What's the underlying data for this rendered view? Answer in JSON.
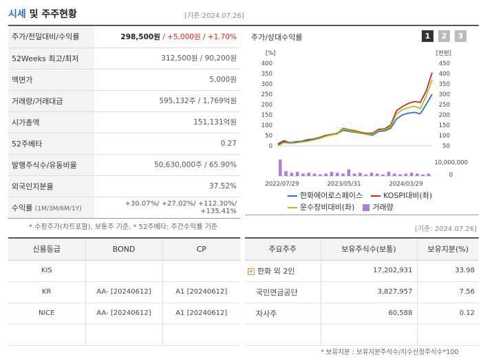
{
  "header": {
    "title_accent": "시세",
    "title_rest": " 및 주주현황",
    "basis": "[기준:2024.07.26]"
  },
  "price_table": {
    "rows": [
      {
        "label": "주가/전일대비/수익률",
        "price": "298,500원",
        "sep1": " / ",
        "change": "+5,000원",
        "sep2": " / ",
        "rate": "+1.70%"
      },
      {
        "label": "52Weeks 최고/최저",
        "value": "312,500원 / 90,200원"
      },
      {
        "label": "액면가",
        "value": "5,000원"
      },
      {
        "label": "거래량/거래대금",
        "value": "595,132주 / 1,769억원"
      },
      {
        "label": "시가총액",
        "value": "151,131억원"
      },
      {
        "label": "52주베타",
        "value": "0.27"
      },
      {
        "label": "발행주식수/유동비율",
        "value": "50,630,000주 / 65.90%"
      },
      {
        "label": "외국인지분율",
        "value": "37.52%"
      },
      {
        "label": "수익률",
        "label_sub": "(1M/3M/6M/1Y)",
        "value": "+30.07%/ +27.02%/ +112.30%/ +135.41%"
      }
    ],
    "footnote": "* 수정주가(차트포함), 보통주 기준, * 52주베타: 주간수익률 기준"
  },
  "chart_panel": {
    "title": "주가/상대수익률",
    "buttons": [
      "1",
      "2",
      "3"
    ],
    "active_button": "1",
    "colors": {
      "active": "#333333",
      "inactive": "#bbbbbb"
    },
    "left_unit": "[%]",
    "right_unit": "[천원]",
    "volume_label": "10,000,000"
  },
  "chart_data": {
    "type": "line",
    "x_labels": [
      "2022/07/29",
      "2023/05/31",
      "2024/03/29"
    ],
    "ylim_left": [
      0,
      400
    ],
    "y_ticks_left": [
      400,
      350,
      300,
      250,
      200,
      150,
      100,
      50,
      0
    ],
    "ylim_right": [
      50,
      450
    ],
    "y_ticks_right": [
      450,
      400,
      350,
      300,
      250,
      200,
      150,
      100,
      50
    ],
    "series": [
      {
        "name": "한화에어로스페이스",
        "color": "#2e6ed0",
        "values": [
          10,
          25,
          15,
          20,
          22,
          30,
          33,
          40,
          50,
          55,
          58,
          75,
          70,
          65,
          60,
          55,
          52,
          70,
          72,
          85,
          130,
          150,
          158,
          162,
          155,
          200,
          250
        ]
      },
      {
        "name": "KOSPI대비(좌)",
        "color": "#c62b1a",
        "values": [
          5,
          20,
          12,
          15,
          20,
          25,
          30,
          38,
          48,
          55,
          60,
          85,
          78,
          72,
          65,
          60,
          62,
          80,
          82,
          100,
          170,
          190,
          205,
          215,
          210,
          265,
          355
        ]
      },
      {
        "name": "운수장비대비(좌)",
        "color": "#a6c227",
        "values": [
          0,
          15,
          12,
          14,
          18,
          22,
          28,
          35,
          45,
          52,
          57,
          82,
          75,
          68,
          60,
          55,
          58,
          75,
          78,
          92,
          155,
          175,
          185,
          192,
          180,
          240,
          320
        ]
      }
    ],
    "volume": {
      "name": "거래량",
      "color": "#a97fd8",
      "values": [
        20,
        6,
        4,
        5,
        3,
        4,
        3,
        2,
        3,
        5,
        4,
        3,
        8,
        3,
        4,
        2,
        4,
        3,
        2,
        5,
        3,
        2,
        3,
        4,
        3,
        2,
        3
      ]
    }
  },
  "legend": {
    "items": [
      {
        "label": "한화에어로스페이스",
        "color": "#2e6ed0",
        "shape": "line"
      },
      {
        "label": "KOSPI대비(좌)",
        "color": "#c62b1a",
        "shape": "line"
      },
      {
        "label": "운수장비대비(좌)",
        "color": "#a6c227",
        "shape": "line"
      },
      {
        "label": "거래량",
        "color": "#a97fd8",
        "shape": "square"
      }
    ]
  },
  "basis_mid": "[기준: 2024.07.26]",
  "credit_table": {
    "headers": [
      "신용등급",
      "BOND",
      "CP"
    ],
    "rows": [
      [
        "KIS",
        "",
        ""
      ],
      [
        "KR",
        "AA-  [20240612]",
        "A1  [20240612]"
      ],
      [
        "NICE",
        "AA-  [20240612]",
        "A1  [20240612]"
      ],
      [
        "",
        "",
        ""
      ]
    ]
  },
  "holder_table": {
    "headers": [
      "주요주주",
      "보유주식수(보통)",
      "보유지분(%)"
    ],
    "rows": [
      {
        "name": "한화 외 2인",
        "expandable": true,
        "shares": "17,202,931",
        "pct": "33.98"
      },
      {
        "name": "국민연금공단",
        "expandable": false,
        "shares": "3,827,957",
        "pct": "7.56"
      },
      {
        "name": "자사주",
        "expandable": false,
        "shares": "60,588",
        "pct": "0.12"
      },
      {
        "name": "",
        "expandable": false,
        "shares": "",
        "pct": ""
      }
    ],
    "footnote": "* 보유지분 : 보유지분주식수/지수산정주식수*100"
  }
}
